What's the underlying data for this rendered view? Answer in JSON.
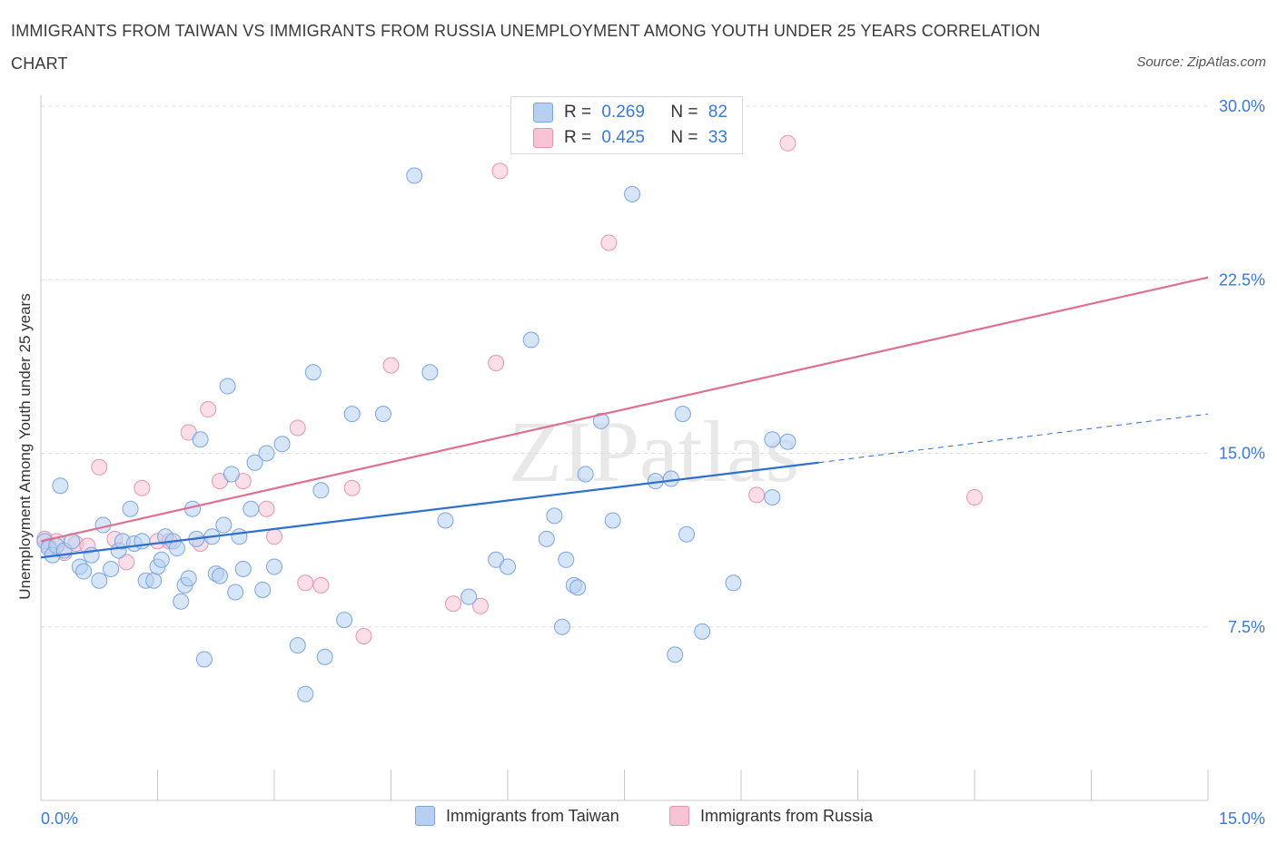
{
  "title": "IMMIGRANTS FROM TAIWAN VS IMMIGRANTS FROM RUSSIA UNEMPLOYMENT AMONG YOUTH UNDER 25 YEARS CORRELATION CHART",
  "source": "Source: ZipAtlas.com",
  "watermark": "ZIPatlas",
  "legend": {
    "taiwan": {
      "r_label": "R =",
      "r_value": "0.269",
      "n_label": "N =",
      "n_value": "82"
    },
    "russia": {
      "r_label": "R =",
      "r_value": "0.425",
      "n_label": "N =",
      "n_value": "33"
    }
  },
  "colors": {
    "taiwan_fill": "#b7d0f2",
    "taiwan_stroke": "#7aa6e0",
    "taiwan_line": "#2f6fce",
    "russia_fill": "#f7c4d5",
    "russia_stroke": "#e893b1",
    "russia_line": "#e0708f",
    "tick_label": "#3b78d8",
    "grid": "#dcdcdc"
  },
  "chart_data": {
    "type": "scatter",
    "title": "IMMIGRANTS FROM TAIWAN VS IMMIGRANTS FROM RUSSIA UNEMPLOYMENT AMONG YOUTH UNDER 25 YEARS CORRELATION CHART",
    "xlabel": "",
    "ylabel": "Unemployment Among Youth under 25 years",
    "xlim": [
      0,
      15
    ],
    "ylim": [
      0,
      30
    ],
    "x_tick_labels": [
      "0.0%",
      "15.0%"
    ],
    "y_ticks": [
      7.5,
      15.0,
      22.5,
      30.0
    ],
    "y_tick_labels": [
      "7.5%",
      "15.0%",
      "22.5%",
      "30.0%"
    ],
    "grid": true,
    "legend_position": "top-center",
    "series": [
      {
        "name": "Immigrants from Taiwan",
        "R": 0.269,
        "N": 82,
        "trend": {
          "x": [
            0,
            10.0
          ],
          "y": [
            10.5,
            14.6
          ]
        },
        "trend_extension": {
          "x": [
            10.0,
            15.0
          ],
          "y": [
            14.6,
            16.7
          ]
        },
        "points": [
          [
            0.05,
            11.2
          ],
          [
            0.1,
            10.9
          ],
          [
            0.15,
            10.6
          ],
          [
            0.2,
            11.0
          ],
          [
            0.25,
            13.6
          ],
          [
            0.3,
            10.8
          ],
          [
            0.4,
            11.2
          ],
          [
            0.5,
            10.1
          ],
          [
            0.55,
            9.9
          ],
          [
            0.65,
            10.6
          ],
          [
            0.75,
            9.5
          ],
          [
            0.8,
            11.9
          ],
          [
            0.9,
            10.0
          ],
          [
            1.0,
            10.8
          ],
          [
            1.05,
            11.2
          ],
          [
            1.15,
            12.6
          ],
          [
            1.2,
            11.1
          ],
          [
            1.3,
            11.2
          ],
          [
            1.35,
            9.5
          ],
          [
            1.45,
            9.5
          ],
          [
            1.5,
            10.1
          ],
          [
            1.55,
            10.4
          ],
          [
            1.6,
            11.4
          ],
          [
            1.7,
            11.2
          ],
          [
            1.75,
            10.9
          ],
          [
            1.8,
            8.6
          ],
          [
            1.85,
            9.3
          ],
          [
            1.9,
            9.6
          ],
          [
            1.95,
            12.6
          ],
          [
            2.0,
            11.3
          ],
          [
            2.05,
            15.6
          ],
          [
            2.1,
            6.1
          ],
          [
            2.2,
            11.4
          ],
          [
            2.25,
            9.8
          ],
          [
            2.3,
            9.7
          ],
          [
            2.35,
            11.9
          ],
          [
            2.4,
            17.9
          ],
          [
            2.45,
            14.1
          ],
          [
            2.5,
            9.0
          ],
          [
            2.55,
            11.4
          ],
          [
            2.6,
            10.0
          ],
          [
            2.7,
            12.6
          ],
          [
            2.75,
            14.6
          ],
          [
            2.85,
            9.1
          ],
          [
            2.9,
            15.0
          ],
          [
            3.0,
            10.1
          ],
          [
            3.1,
            15.4
          ],
          [
            3.3,
            6.7
          ],
          [
            3.4,
            4.6
          ],
          [
            3.5,
            18.5
          ],
          [
            3.6,
            13.4
          ],
          [
            3.65,
            6.2
          ],
          [
            3.9,
            7.8
          ],
          [
            4.0,
            16.7
          ],
          [
            4.4,
            16.7
          ],
          [
            4.8,
            27.0
          ],
          [
            5.0,
            18.5
          ],
          [
            5.2,
            12.1
          ],
          [
            5.5,
            8.8
          ],
          [
            5.85,
            10.4
          ],
          [
            6.0,
            10.1
          ],
          [
            6.3,
            19.9
          ],
          [
            6.5,
            11.3
          ],
          [
            6.6,
            12.3
          ],
          [
            6.7,
            7.5
          ],
          [
            6.75,
            10.4
          ],
          [
            6.85,
            9.3
          ],
          [
            6.9,
            9.2
          ],
          [
            7.0,
            14.1
          ],
          [
            7.2,
            16.4
          ],
          [
            7.35,
            12.1
          ],
          [
            7.6,
            26.2
          ],
          [
            7.9,
            13.8
          ],
          [
            8.1,
            13.9
          ],
          [
            8.15,
            6.3
          ],
          [
            8.25,
            16.7
          ],
          [
            8.3,
            11.5
          ],
          [
            8.5,
            7.3
          ],
          [
            8.9,
            9.4
          ],
          [
            9.4,
            13.1
          ],
          [
            9.4,
            15.6
          ],
          [
            9.6,
            15.5
          ]
        ]
      },
      {
        "name": "Immigrants from Russia",
        "R": 0.425,
        "N": 33,
        "trend": {
          "x": [
            0,
            15.0
          ],
          "y": [
            11.2,
            22.6
          ]
        },
        "points": [
          [
            0.05,
            11.3
          ],
          [
            0.1,
            11.0
          ],
          [
            0.2,
            11.2
          ],
          [
            0.3,
            10.7
          ],
          [
            0.45,
            11.1
          ],
          [
            0.6,
            11.0
          ],
          [
            0.75,
            14.4
          ],
          [
            0.95,
            11.3
          ],
          [
            1.1,
            10.3
          ],
          [
            1.3,
            13.5
          ],
          [
            1.5,
            11.2
          ],
          [
            1.65,
            11.2
          ],
          [
            1.9,
            15.9
          ],
          [
            2.05,
            11.1
          ],
          [
            2.15,
            16.9
          ],
          [
            2.3,
            13.8
          ],
          [
            2.6,
            13.8
          ],
          [
            2.9,
            12.6
          ],
          [
            3.0,
            11.4
          ],
          [
            3.3,
            16.1
          ],
          [
            3.4,
            9.4
          ],
          [
            3.6,
            9.3
          ],
          [
            4.0,
            13.5
          ],
          [
            4.15,
            7.1
          ],
          [
            4.5,
            18.8
          ],
          [
            5.3,
            8.5
          ],
          [
            5.65,
            8.4
          ],
          [
            5.85,
            18.9
          ],
          [
            5.9,
            27.2
          ],
          [
            7.3,
            24.1
          ],
          [
            9.2,
            13.2
          ],
          [
            9.6,
            28.4
          ],
          [
            12.0,
            13.1
          ]
        ]
      }
    ]
  }
}
